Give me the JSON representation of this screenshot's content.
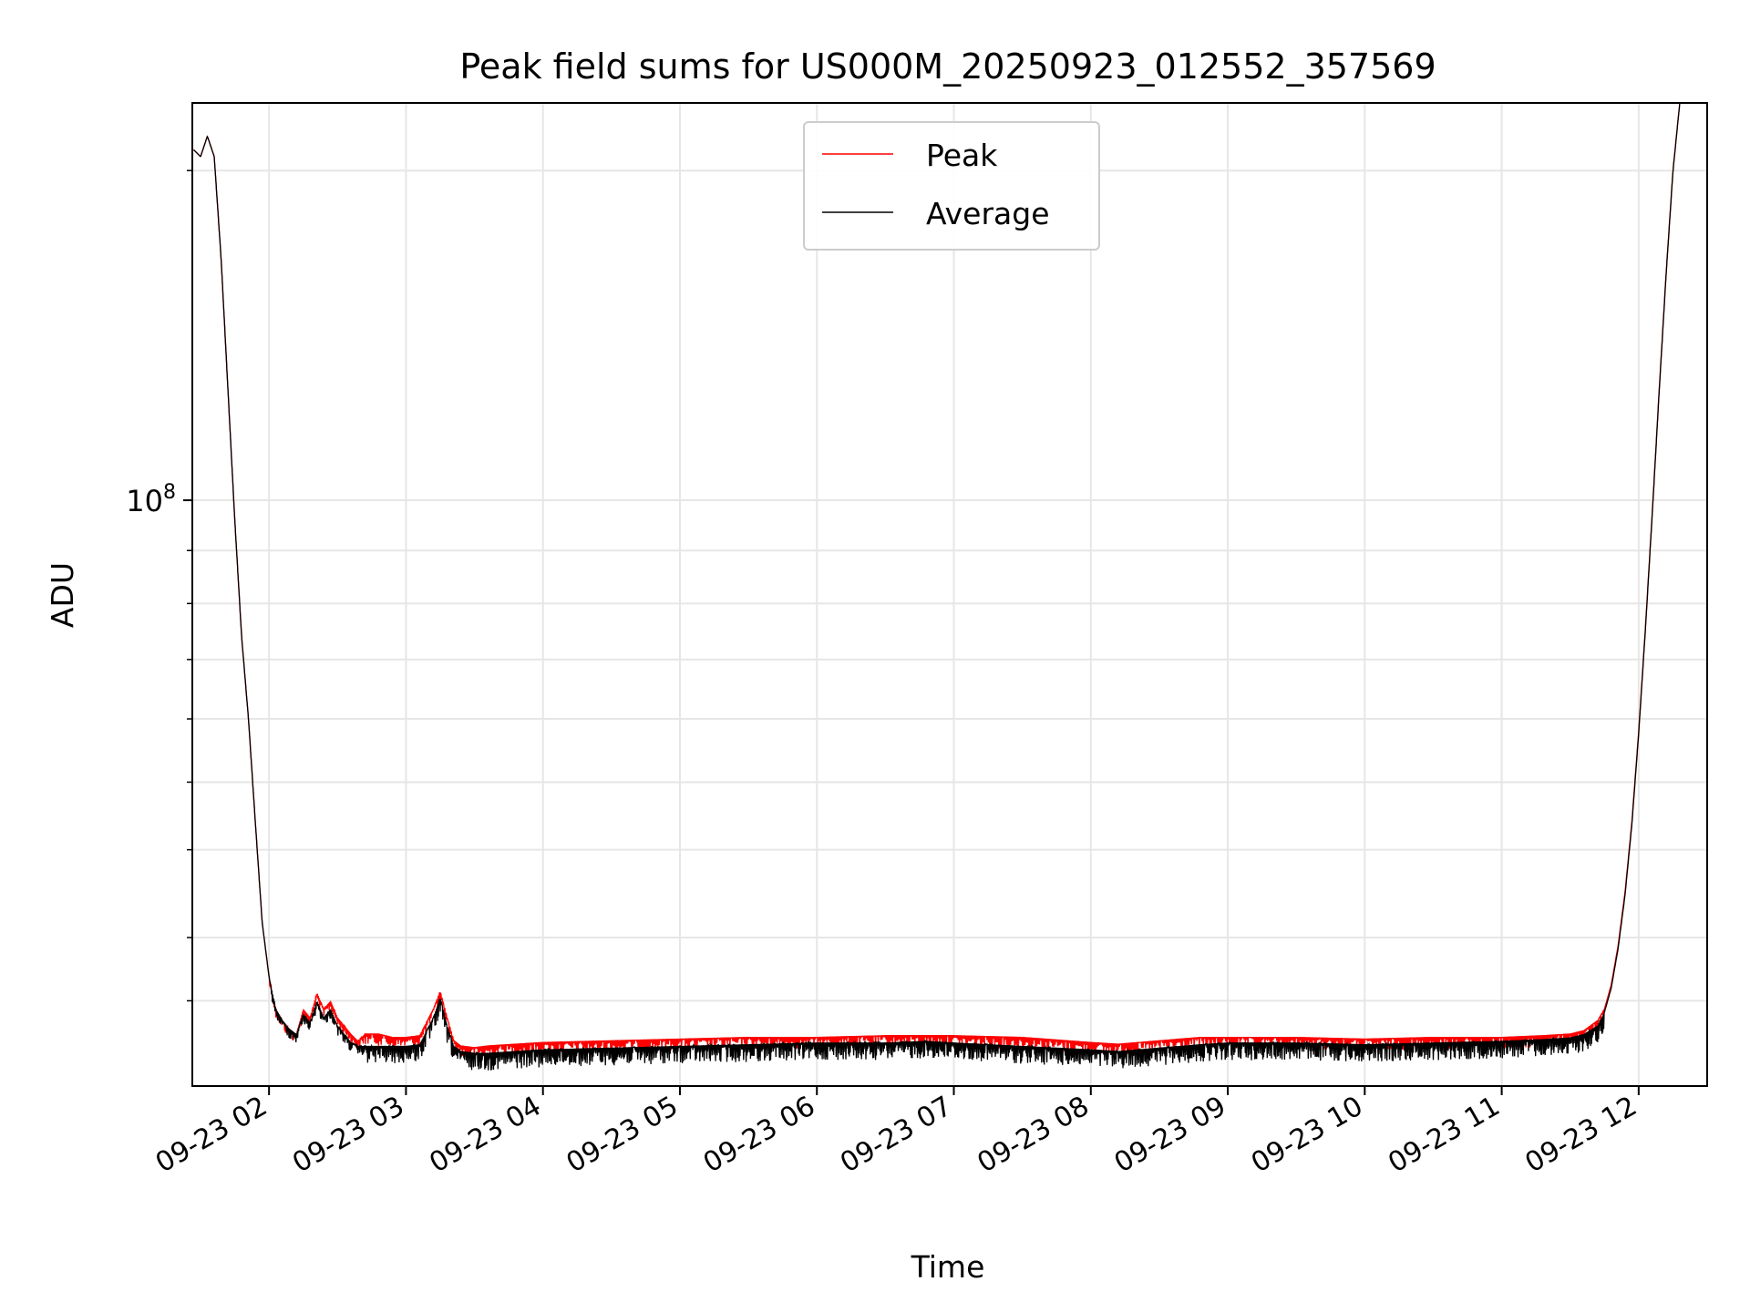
{
  "chart_data": {
    "type": "line",
    "title": "Peak field sums for US000M_20250923_012552_357569",
    "xlabel": "Time",
    "ylabel": "ADU",
    "yscale": "log",
    "x_unit": "hours (09-23)",
    "xlim": [
      1.44,
      12.5
    ],
    "ylim": [
      55000000,
      150000000
    ],
    "xticks": [
      {
        "value": 2,
        "label": "09-23 02"
      },
      {
        "value": 3,
        "label": "09-23 03"
      },
      {
        "value": 4,
        "label": "09-23 04"
      },
      {
        "value": 5,
        "label": "09-23 05"
      },
      {
        "value": 6,
        "label": "09-23 06"
      },
      {
        "value": 7,
        "label": "09-23 07"
      },
      {
        "value": 8,
        "label": "09-23 08"
      },
      {
        "value": 9,
        "label": "09-23 09"
      },
      {
        "value": 10,
        "label": "09-23 10"
      },
      {
        "value": 11,
        "label": "09-23 11"
      },
      {
        "value": 12,
        "label": "09-23 12"
      }
    ],
    "yticks_major": [
      {
        "value": 100000000,
        "label_base": "10",
        "label_exp": "8"
      }
    ],
    "yticks_minor": [
      60000000,
      70000000,
      80000000,
      90000000,
      200000000
    ],
    "yticks_minor_extra": [
      64000000,
      75000000,
      85000000,
      95000000,
      140000000
    ],
    "grid": true,
    "legend_position": "top-center",
    "series": [
      {
        "name": "Peak",
        "color": "#ff0000",
        "x": [
          1.45,
          1.5,
          1.55,
          1.6,
          1.65,
          1.7,
          1.75,
          1.8,
          1.85,
          1.9,
          1.95,
          2.0,
          2.05,
          2.1,
          2.15,
          2.2,
          2.25,
          2.3,
          2.35,
          2.4,
          2.45,
          2.5,
          2.55,
          2.6,
          2.65,
          2.7,
          2.8,
          2.9,
          3.0,
          3.1,
          3.2,
          3.25,
          3.3,
          3.35,
          3.4,
          3.5,
          3.6,
          3.8,
          4.0,
          4.5,
          5.0,
          5.5,
          6.0,
          6.5,
          6.8,
          7.0,
          7.5,
          8.0,
          8.2,
          8.5,
          8.8,
          9.0,
          9.5,
          10.0,
          10.5,
          11.0,
          11.3,
          11.5,
          11.6,
          11.7,
          11.75,
          11.8,
          11.85,
          11.9,
          11.95,
          12.0,
          12.05,
          12.1,
          12.15,
          12.2,
          12.25,
          12.3
        ],
        "values": [
          143000000,
          142000000,
          145000000,
          142000000,
          128000000,
          112000000,
          98000000,
          87000000,
          80000000,
          72000000,
          65000000,
          61500000,
          59500000,
          58800000,
          58300000,
          58000000,
          59500000,
          59000000,
          60500000,
          59500000,
          60000000,
          59000000,
          58500000,
          58000000,
          57600000,
          58000000,
          58000000,
          57800000,
          57800000,
          57900000,
          59500000,
          60600000,
          59000000,
          57600000,
          57300000,
          57200000,
          57300000,
          57400000,
          57500000,
          57600000,
          57700000,
          57800000,
          57800000,
          57900000,
          57900000,
          57900000,
          57800000,
          57500000,
          57400000,
          57600000,
          57800000,
          57800000,
          57800000,
          57700000,
          57800000,
          57800000,
          57900000,
          58000000,
          58200000,
          58800000,
          59500000,
          61000000,
          63500000,
          67000000,
          72000000,
          79000000,
          88000000,
          99000000,
          112000000,
          126000000,
          140000000,
          150000000
        ]
      },
      {
        "name": "Average",
        "color": "#000000",
        "x": [
          1.45,
          1.5,
          1.55,
          1.6,
          1.65,
          1.7,
          1.75,
          1.8,
          1.85,
          1.9,
          1.95,
          2.0,
          2.05,
          2.1,
          2.15,
          2.2,
          2.25,
          2.3,
          2.35,
          2.4,
          2.45,
          2.5,
          2.55,
          2.6,
          2.65,
          2.7,
          2.8,
          2.9,
          3.0,
          3.1,
          3.2,
          3.25,
          3.3,
          3.35,
          3.4,
          3.5,
          3.6,
          3.8,
          4.0,
          4.5,
          5.0,
          5.5,
          6.0,
          6.5,
          6.8,
          7.0,
          7.5,
          8.0,
          8.2,
          8.5,
          8.8,
          9.0,
          9.5,
          10.0,
          10.5,
          11.0,
          11.3,
          11.5,
          11.6,
          11.7,
          11.75,
          11.8,
          11.85,
          11.9,
          11.95,
          12.0,
          12.05,
          12.1,
          12.15,
          12.2,
          12.25,
          12.3
        ],
        "values": [
          143000000,
          142000000,
          145000000,
          142000000,
          128000000,
          112000000,
          98000000,
          87000000,
          80000000,
          72000000,
          65000000,
          61500000,
          59500000,
          58800000,
          58300000,
          58000000,
          59200000,
          58700000,
          60000000,
          59000000,
          59500000,
          58500000,
          58000000,
          57500000,
          57300000,
          57300000,
          57300000,
          57300000,
          57300000,
          57400000,
          59000000,
          60200000,
          58500000,
          57300000,
          57000000,
          56900000,
          56900000,
          57000000,
          57100000,
          57200000,
          57300000,
          57400000,
          57500000,
          57500000,
          57600000,
          57500000,
          57300000,
          57100000,
          57000000,
          57200000,
          57400000,
          57500000,
          57500000,
          57400000,
          57500000,
          57600000,
          57700000,
          57800000,
          58000000,
          58500000,
          59300000,
          60800000,
          63300000,
          66800000,
          71800000,
          78800000,
          87800000,
          98800000,
          111800000,
          125800000,
          139800000,
          150000000
        ]
      }
    ]
  }
}
